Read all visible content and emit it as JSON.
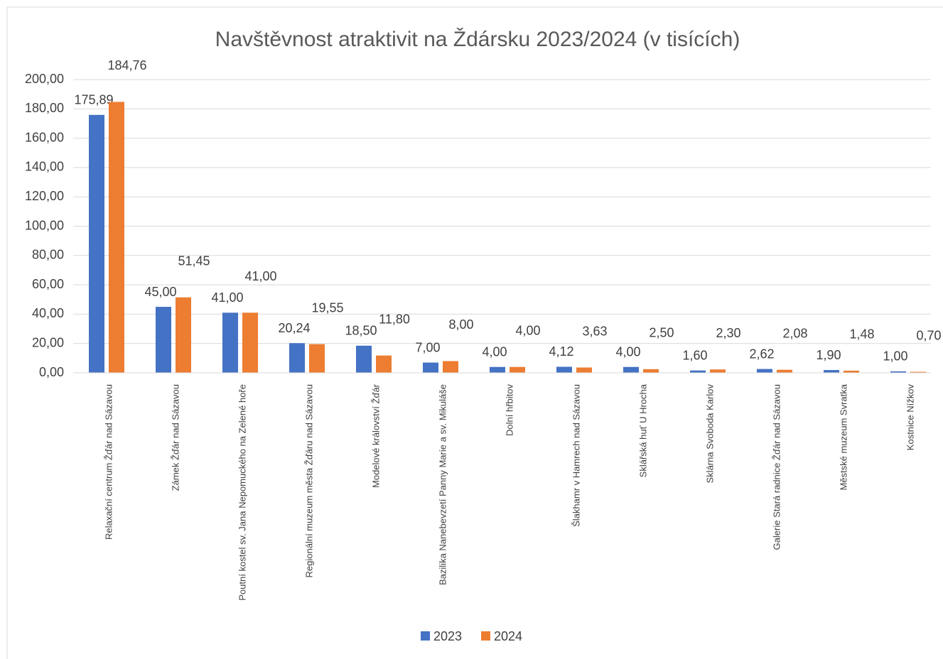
{
  "chart_data": {
    "type": "bar",
    "title": "Navštěvnost atraktivit na Ždársku 2023/2024 (v tisících)",
    "categories": [
      "Relaxační centrum Žďár nad Sázavou",
      "Zámek Žďár nad Sázavou",
      "Poutní kostel sv. Jana Nepomuckého na Zelené hoře",
      "Regionální muzeum města Žďáru nad Sázavou",
      "Modelové království Žďár",
      "Bazilika Nanebevzetí Panny Marie a sv. Mikuláše",
      "Dolní hřbitov",
      "Šlakhamr v Hamrech nad Sázavou",
      "Sklářská huť U Hrocha",
      "Sklárna Svoboda Karlov",
      "Galerie Stará radnice Žďár nad Sázavou",
      "Městské muzeum Svratka",
      "Kostnice Nížkov"
    ],
    "series": [
      {
        "name": "2023",
        "color": "#4472c4",
        "values": [
          175.89,
          45,
          41,
          20.24,
          18.5,
          7,
          4,
          4.12,
          4,
          1.6,
          2.62,
          1.9,
          1
        ],
        "value_labels": [
          "175,89",
          "45,00",
          "41,00",
          "20,24",
          "18,50",
          "7,00",
          "4,00",
          "4,12",
          "4,00",
          "1,60",
          "2,62",
          "1,90",
          "1,00"
        ]
      },
      {
        "name": "2024",
        "color": "#ed7d31",
        "values": [
          184.76,
          51.45,
          41,
          19.55,
          11.8,
          8,
          4,
          3.63,
          2.5,
          2.3,
          2.08,
          1.48,
          0.7
        ],
        "value_labels": [
          "184,76",
          "51,45",
          "41,00",
          "19,55",
          "11,80",
          "8,00",
          "4,00",
          "3,63",
          "2,50",
          "2,30",
          "2,08",
          "1,48",
          "0,70"
        ]
      }
    ],
    "ylim": [
      0,
      200
    ],
    "yticks": [
      {
        "value": 0,
        "label": "0,00"
      },
      {
        "value": 20,
        "label": "20,00"
      },
      {
        "value": 40,
        "label": "40,00"
      },
      {
        "value": 60,
        "label": "60,00"
      },
      {
        "value": 80,
        "label": "80,00"
      },
      {
        "value": 100,
        "label": "100,00"
      },
      {
        "value": 120,
        "label": "120,00"
      },
      {
        "value": 140,
        "label": "140,00"
      },
      {
        "value": 160,
        "label": "160,00"
      },
      {
        "value": 180,
        "label": "180,00"
      },
      {
        "value": 200,
        "label": "200,00"
      }
    ],
    "grid": true,
    "legend": "bottom"
  }
}
